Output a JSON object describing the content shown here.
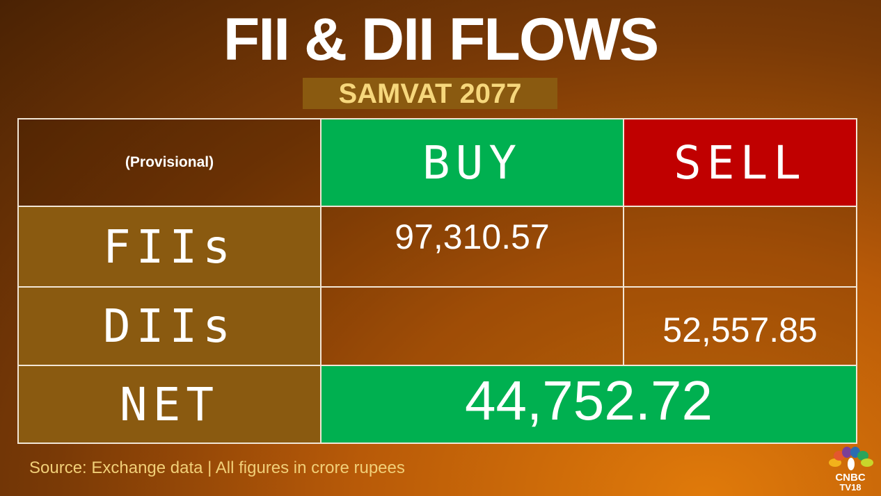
{
  "header": {
    "title": "FII & DII FLOWS",
    "subtitle": "SAMVAT 2077"
  },
  "table": {
    "head": {
      "note": "(Provisional)",
      "buy": "BUY",
      "sell": "SELL"
    },
    "rows": [
      {
        "label": "FIIs",
        "buy": "97,310.57"
      },
      {
        "label": "DIIs",
        "sell": "52,557.85"
      }
    ],
    "net": {
      "label": "NET",
      "value": "44,752.72"
    }
  },
  "footer": {
    "source": "Source: Exchange data | All figures in crore rupees"
  },
  "logo": {
    "brand": "CNBC",
    "sub": "TV18"
  }
}
